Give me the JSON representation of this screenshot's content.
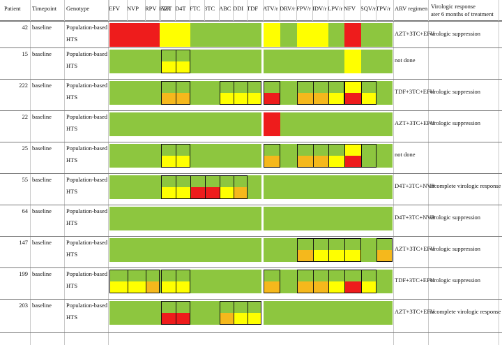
{
  "colors": {
    "G": "#8dc63f",
    "Y": "#ffff00",
    "O": "#f5b81c",
    "R": "#ee1c1c",
    "N": "#ffffff"
  },
  "headers": {
    "patient": "Patient",
    "timepoint": "Timepoint",
    "genotype": "Genotype",
    "regimen": "ARV regimen",
    "response_line1": "Virologic response",
    "response_line2": "ater 6 months of treatment"
  },
  "drugs": [
    "EFV",
    "NVP",
    "RPV",
    "ETR",
    "AZT",
    "D4T",
    "FTC",
    "3TC",
    "ABC",
    "DDI",
    "TDF",
    "ATV/r",
    "DRV/r",
    "FPV/r",
    "IDV/r",
    "LPV/r",
    "NFV",
    "SQV/r",
    "TPV/r"
  ],
  "patients": [
    {
      "id": "42",
      "tp": "baseline",
      "g1": "Population-based",
      "g2": "HTS",
      "regimen": "AZT+3TC+EFV",
      "response": "virologic suppression",
      "r1": "RRRYYYGGGGGYGYYGRGG",
      "r2": "RRRYYYGGGGGYGYYGRGG",
      "span": true,
      "boxes": []
    },
    {
      "id": "15",
      "tp": "baseline",
      "g1": "Population-based",
      "g2": "HTS",
      "regimen": "not done",
      "response": "",
      "r1": "GGGGGGGGGGGGGGGGYGG",
      "r2": "GGGGYYGGGGGGGGGGYGG",
      "span": false,
      "boxes": [
        [
          4,
          5
        ]
      ]
    },
    {
      "id": "222",
      "tp": "baseline",
      "g1": "Population-based",
      "g2": "HTS",
      "regimen": "TDF+3TC+EFV",
      "response": "virologic suppression",
      "r1": "GGGGGGGGGGGGGGGGYGG",
      "r2": "GGGGOOGGYYYRGOOYRYG",
      "span": false,
      "boxes": [
        [
          4,
          5
        ],
        [
          8,
          10
        ],
        [
          11,
          11
        ],
        [
          13,
          15
        ],
        [
          16,
          17
        ]
      ]
    },
    {
      "id": "22",
      "tp": "baseline",
      "g1": "Population-based",
      "g2": "HTS",
      "regimen": "AZT+3TC+EFV",
      "response": "virologic suppression",
      "r1": "GGGGGGGGGGGRGGGGGGG",
      "r2": "GGGGGGGGGGGRGGGGGGG",
      "span": false,
      "boxes": []
    },
    {
      "id": "25",
      "tp": "baseline",
      "g1": "Population-based",
      "g2": "HTS",
      "regimen": "not done",
      "response": "",
      "r1": "GGGGGGGGGGGGGGGGYGG",
      "r2": "GGGGYYGGGGGOGOOYRGG",
      "span": false,
      "boxes": [
        [
          4,
          5
        ],
        [
          11,
          11
        ],
        [
          13,
          17
        ]
      ]
    },
    {
      "id": "55",
      "tp": "baseline",
      "g1": "Population-based",
      "g2": "HTS",
      "regimen": "D4T+3TC+NVP",
      "response": "incomplete virologic response",
      "r1": "GGGGGGGGGGGGGGGGGGG",
      "r2": "GGGGYYRRYOGGGGGGGGG",
      "span": false,
      "boxes": [
        [
          4,
          9
        ]
      ]
    },
    {
      "id": "64",
      "tp": "baseline",
      "g1": "Population-based",
      "g2": "HTS",
      "regimen": "D4T+3TC+NVP",
      "response": "virologic suppression",
      "r1": "GGGGGGGGGGGGGGGGGGG",
      "r2": "GGGGGGGGGGGGGGGGGGG",
      "span": false,
      "boxes": []
    },
    {
      "id": "147",
      "tp": "baseline",
      "g1": "Population-based",
      "g2": "HTS",
      "regimen": "AZT+3TC+EFV",
      "response": "virologic suppression",
      "r1": "GGGGGGGGGGGGGGGGGGG",
      "r2": "GGGGGGGGGGGGGOYYYGO",
      "span": false,
      "boxes": [
        [
          13,
          16
        ],
        [
          18,
          18
        ]
      ]
    },
    {
      "id": "199",
      "tp": "baseline",
      "g1": "Population-based",
      "g2": "HTS",
      "regimen": "TDF+3TC+EFV",
      "response": "virologic suppression",
      "r1": "GGGGGGGGGGGGGGGGGGG",
      "r2": "YYOGYYGGGGGOGOOYRYG",
      "span": false,
      "boxes": [
        [
          0,
          2
        ],
        [
          4,
          5
        ],
        [
          11,
          11
        ],
        [
          13,
          17
        ]
      ]
    },
    {
      "id": "203",
      "tp": "baseline",
      "g1": "Population-based",
      "g2": "HTS",
      "regimen": "AZT+3TC+EFV",
      "response": "incomplete virologic response",
      "r1": "GGGGGGGGGGGGGGGGGGG",
      "r2": "GGGGRRGGOYYGGGGGGGG",
      "span": false,
      "boxes": [
        [
          4,
          5
        ],
        [
          8,
          10
        ]
      ]
    }
  ]
}
